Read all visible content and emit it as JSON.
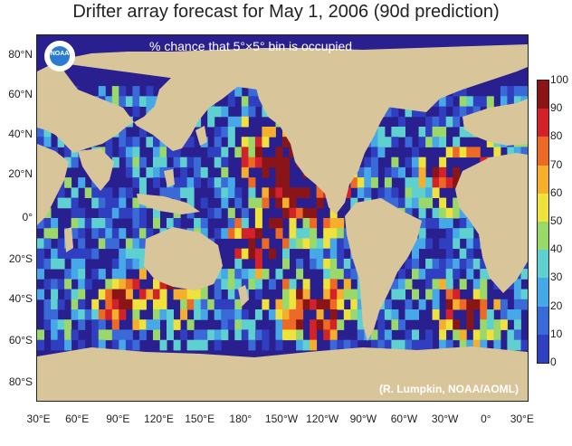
{
  "title": "Drifter array forecast for May 1, 2006 (90d prediction)",
  "subtitle": "% chance that 5°×5° bin is occupied",
  "credit": "(R. Lumpkin, NOAA/AOML)",
  "logo_text": "NOAA",
  "lat_labels": [
    "80°N",
    "60°N",
    "40°N",
    "20°N",
    "0°",
    "20°S",
    "40°S",
    "60°S",
    "80°S"
  ],
  "lon_labels": [
    "30°E",
    "60°E",
    "90°E",
    "120°E",
    "150°E",
    "180°",
    "150°W",
    "120°W",
    "90°W",
    "60°W",
    "30°W",
    "0°",
    "30°E"
  ],
  "colorbar": {
    "labels": [
      "0",
      "10",
      "20",
      "30",
      "40",
      "50",
      "60",
      "70",
      "80",
      "90",
      "100"
    ],
    "colors": [
      "#2a1f8f",
      "#2f3fc0",
      "#3a6ad8",
      "#47a8e8",
      "#5fd0d0",
      "#9ad86a",
      "#f0e23c",
      "#f6ae2d",
      "#ec6a25",
      "#d3222a",
      "#8a1518"
    ]
  },
  "land_color": "#d9c59a",
  "ocean_color": "#2a1f8f"
}
